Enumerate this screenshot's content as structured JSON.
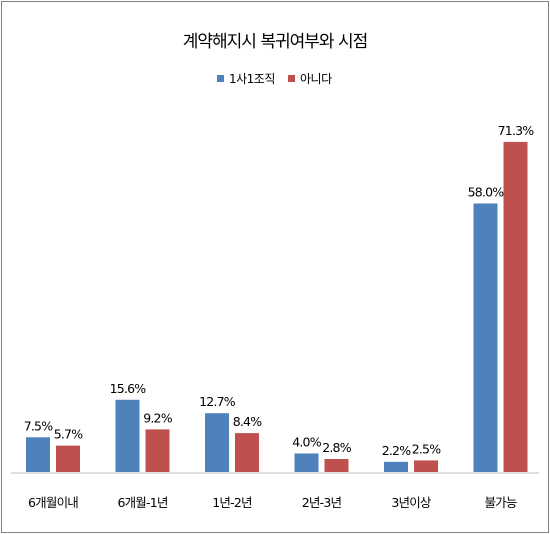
{
  "chart_data": {
    "type": "bar",
    "title": "계약해지시 복귀여부와 시점",
    "categories": [
      "6개월이내",
      "6개월-1년",
      "1년-2년",
      "2년-3년",
      "3년이상",
      "불가능"
    ],
    "series": [
      {
        "name": "1사1조직",
        "color": "#4f81bd",
        "values": [
          7.5,
          15.6,
          12.7,
          4.0,
          2.2,
          58.0
        ],
        "labels": [
          "7.5%",
          "15.6%",
          "12.7%",
          "4.0%",
          "2.2%",
          "58.0%"
        ]
      },
      {
        "name": "아니다",
        "color": "#c0504d",
        "values": [
          5.7,
          9.2,
          8.4,
          2.8,
          2.5,
          71.3
        ],
        "labels": [
          "5.7%",
          "9.2%",
          "8.4%",
          "2.8%",
          "2.5%",
          "71.3%"
        ]
      }
    ],
    "ylim": [
      0,
      80
    ],
    "grid": false,
    "legend_position": "top"
  }
}
